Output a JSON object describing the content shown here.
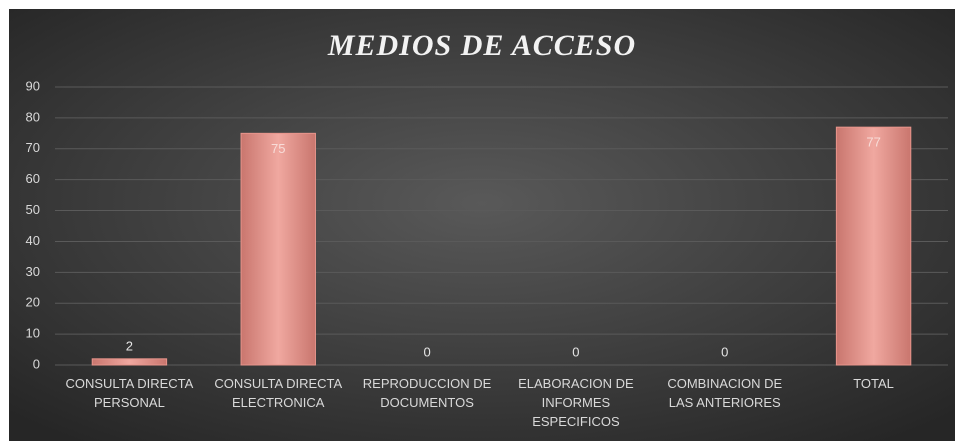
{
  "chart_data": {
    "type": "bar",
    "title": "MEDIOS DE ACCESO",
    "categories": [
      "CONSULTA DIRECTA PERSONAL",
      "CONSULTA DIRECTA ELECTRONICA",
      "REPRODUCCION DE DOCUMENTOS",
      "ELABORACION DE INFORMES ESPECIFICOS",
      "COMBINACION DE LAS ANTERIORES",
      "TOTAL"
    ],
    "values": [
      2,
      75,
      0,
      0,
      0,
      77
    ],
    "color": "#e8958c",
    "ylim": [
      0,
      90
    ],
    "yticks": [
      0,
      10,
      20,
      30,
      40,
      50,
      60,
      70,
      80,
      90
    ],
    "grid": true
  }
}
